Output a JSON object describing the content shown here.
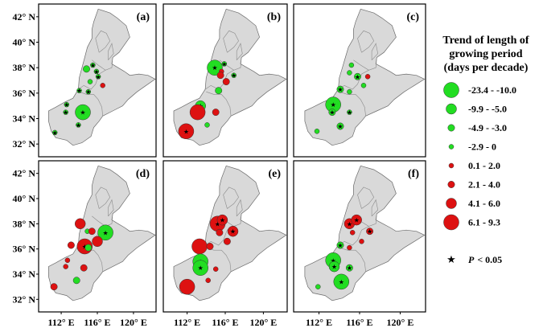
{
  "lat_ticks": [
    "42° N",
    "40° N",
    "38° N",
    "36° N",
    "34° N",
    "32° N"
  ],
  "lon_ticks": [
    "112° E",
    "116° E",
    "120° E"
  ],
  "panels": [
    {
      "label": "(a)",
      "stations": [
        {
          "lon": 115.5,
          "lat": 38.2,
          "cls": 3,
          "sig": true
        },
        {
          "lon": 115.9,
          "lat": 37.7,
          "cls": 3,
          "sig": true
        },
        {
          "lon": 114.8,
          "lat": 37.9,
          "cls": 2,
          "sig": false
        },
        {
          "lon": 116.1,
          "lat": 37.3,
          "cls": 3,
          "sig": true
        },
        {
          "lon": 115.2,
          "lat": 36.9,
          "cls": 3,
          "sig": false
        },
        {
          "lon": 116.6,
          "lat": 36.6,
          "cls": 4,
          "sig": false
        },
        {
          "lon": 114.0,
          "lat": 36.2,
          "cls": 3,
          "sig": true
        },
        {
          "lon": 115.0,
          "lat": 36.1,
          "cls": 3,
          "sig": true
        },
        {
          "lon": 112.6,
          "lat": 35.1,
          "cls": 3,
          "sig": true
        },
        {
          "lon": 112.5,
          "lat": 34.5,
          "cls": 3,
          "sig": true
        },
        {
          "lon": 114.4,
          "lat": 34.5,
          "cls": 0,
          "sig": true
        },
        {
          "lon": 113.9,
          "lat": 33.5,
          "cls": 3,
          "sig": true
        },
        {
          "lon": 111.3,
          "lat": 32.9,
          "cls": 3,
          "sig": true
        }
      ]
    },
    {
      "label": "(b)",
      "stations": [
        {
          "lon": 114.9,
          "lat": 38.0,
          "cls": 0,
          "sig": true
        },
        {
          "lon": 115.9,
          "lat": 38.3,
          "cls": 3,
          "sig": true
        },
        {
          "lon": 115.6,
          "lat": 37.7,
          "cls": 4,
          "sig": false
        },
        {
          "lon": 115.5,
          "lat": 37.4,
          "cls": 5,
          "sig": false
        },
        {
          "lon": 116.9,
          "lat": 37.4,
          "cls": 3,
          "sig": true
        },
        {
          "lon": 116.1,
          "lat": 36.9,
          "cls": 5,
          "sig": false
        },
        {
          "lon": 115.3,
          "lat": 36.2,
          "cls": 2,
          "sig": false
        },
        {
          "lon": 113.4,
          "lat": 35.0,
          "cls": 1,
          "sig": true
        },
        {
          "lon": 113.1,
          "lat": 34.5,
          "cls": 7,
          "sig": false
        },
        {
          "lon": 115.0,
          "lat": 34.5,
          "cls": 5,
          "sig": false
        },
        {
          "lon": 114.1,
          "lat": 33.5,
          "cls": 3,
          "sig": false
        },
        {
          "lon": 111.9,
          "lat": 33.0,
          "cls": 7,
          "sig": true
        }
      ]
    },
    {
      "label": "(c)",
      "stations": [
        {
          "lon": 115.2,
          "lat": 38.2,
          "cls": 3,
          "sig": false
        },
        {
          "lon": 115.0,
          "lat": 37.6,
          "cls": 3,
          "sig": false
        },
        {
          "lon": 115.8,
          "lat": 37.3,
          "cls": 2,
          "sig": true
        },
        {
          "lon": 116.8,
          "lat": 37.3,
          "cls": 4,
          "sig": false
        },
        {
          "lon": 116.4,
          "lat": 36.6,
          "cls": 3,
          "sig": false
        },
        {
          "lon": 114.1,
          "lat": 36.3,
          "cls": 2,
          "sig": true
        },
        {
          "lon": 115.0,
          "lat": 36.1,
          "cls": 3,
          "sig": false
        },
        {
          "lon": 113.4,
          "lat": 35.1,
          "cls": 0,
          "sig": true
        },
        {
          "lon": 113.3,
          "lat": 34.5,
          "cls": 2,
          "sig": true
        },
        {
          "lon": 115.0,
          "lat": 34.5,
          "cls": 3,
          "sig": true
        },
        {
          "lon": 114.1,
          "lat": 33.4,
          "cls": 2,
          "sig": true
        },
        {
          "lon": 111.8,
          "lat": 33.0,
          "cls": 3,
          "sig": false
        }
      ]
    },
    {
      "label": "(d)",
      "stations": [
        {
          "lon": 114.1,
          "lat": 38.0,
          "cls": 6,
          "sig": false
        },
        {
          "lon": 114.9,
          "lat": 37.4,
          "cls": 3,
          "sig": false
        },
        {
          "lon": 115.4,
          "lat": 37.4,
          "cls": 5,
          "sig": false
        },
        {
          "lon": 116.9,
          "lat": 37.3,
          "cls": 0,
          "sig": true
        },
        {
          "lon": 116.0,
          "lat": 36.6,
          "cls": 6,
          "sig": false
        },
        {
          "lon": 113.1,
          "lat": 36.3,
          "cls": 5,
          "sig": false
        },
        {
          "lon": 114.6,
          "lat": 36.2,
          "cls": 7,
          "sig": true
        },
        {
          "lon": 115.0,
          "lat": 36.1,
          "cls": 2,
          "sig": false
        },
        {
          "lon": 112.7,
          "lat": 35.1,
          "cls": 4,
          "sig": false
        },
        {
          "lon": 112.5,
          "lat": 34.6,
          "cls": 4,
          "sig": false
        },
        {
          "lon": 114.5,
          "lat": 34.5,
          "cls": 5,
          "sig": false
        },
        {
          "lon": 113.7,
          "lat": 33.5,
          "cls": 2,
          "sig": false
        },
        {
          "lon": 111.2,
          "lat": 33.0,
          "cls": 5,
          "sig": false
        }
      ]
    },
    {
      "label": "(e)",
      "stations": [
        {
          "lon": 115.2,
          "lat": 38.0,
          "cls": 7,
          "sig": true
        },
        {
          "lon": 115.7,
          "lat": 38.3,
          "cls": 6,
          "sig": true
        },
        {
          "lon": 116.8,
          "lat": 37.4,
          "cls": 6,
          "sig": true
        },
        {
          "lon": 115.4,
          "lat": 37.3,
          "cls": 5,
          "sig": false
        },
        {
          "lon": 116.2,
          "lat": 36.6,
          "cls": 5,
          "sig": false
        },
        {
          "lon": 113.3,
          "lat": 36.2,
          "cls": 7,
          "sig": false
        },
        {
          "lon": 114.4,
          "lat": 36.2,
          "cls": 5,
          "sig": false
        },
        {
          "lon": 113.4,
          "lat": 35.0,
          "cls": 0,
          "sig": true
        },
        {
          "lon": 113.4,
          "lat": 34.5,
          "cls": 0,
          "sig": true
        },
        {
          "lon": 115.0,
          "lat": 34.4,
          "cls": 4,
          "sig": false
        },
        {
          "lon": 114.2,
          "lat": 33.5,
          "cls": 4,
          "sig": false
        },
        {
          "lon": 112.0,
          "lat": 33.0,
          "cls": 7,
          "sig": false
        }
      ]
    },
    {
      "label": "(f)",
      "stations": [
        {
          "lon": 115.0,
          "lat": 38.0,
          "cls": 6,
          "sig": true
        },
        {
          "lon": 115.7,
          "lat": 38.3,
          "cls": 6,
          "sig": true
        },
        {
          "lon": 117.0,
          "lat": 37.4,
          "cls": 5,
          "sig": true
        },
        {
          "lon": 115.3,
          "lat": 37.3,
          "cls": 4,
          "sig": false
        },
        {
          "lon": 116.2,
          "lat": 36.6,
          "cls": 4,
          "sig": false
        },
        {
          "lon": 114.1,
          "lat": 36.3,
          "cls": 2,
          "sig": true
        },
        {
          "lon": 115.0,
          "lat": 36.1,
          "cls": 4,
          "sig": false
        },
        {
          "lon": 113.4,
          "lat": 35.1,
          "cls": 0,
          "sig": true
        },
        {
          "lon": 113.5,
          "lat": 34.6,
          "cls": 1,
          "sig": true
        },
        {
          "lon": 115.0,
          "lat": 34.5,
          "cls": 2,
          "sig": true
        },
        {
          "lon": 114.2,
          "lat": 33.4,
          "cls": 0,
          "sig": true
        },
        {
          "lon": 111.9,
          "lat": 33.0,
          "cls": 3,
          "sig": false
        }
      ]
    }
  ],
  "legend": {
    "title_lines": [
      "Trend of length of",
      "growing period",
      "(days per decade)"
    ],
    "classes": [
      {
        "label": "-23.4 - -10.0",
        "color": "#22dd22",
        "size": 4
      },
      {
        "label": "-9.9 - -5.0",
        "color": "#22dd22",
        "size": 3
      },
      {
        "label": "-4.9 - -3.0",
        "color": "#22dd22",
        "size": 2
      },
      {
        "label": "-2.9 - 0",
        "color": "#22dd22",
        "size": 1
      },
      {
        "label": "0.1 - 2.0",
        "color": "#dd1111",
        "size": 1
      },
      {
        "label": "2.1 - 4.0",
        "color": "#dd1111",
        "size": 2
      },
      {
        "label": "4.1 - 6.0",
        "color": "#dd1111",
        "size": 3
      },
      {
        "label": "6.1 - 9.3",
        "color": "#dd1111",
        "size": 4
      }
    ],
    "sig_symbol": "★",
    "sig_label_p": "P",
    "sig_label_rest": "< 0.05"
  },
  "colors": {
    "green": "#22dd22",
    "red": "#dd1111",
    "region": "#d9d9d9",
    "outline": "#6b6b6b"
  }
}
